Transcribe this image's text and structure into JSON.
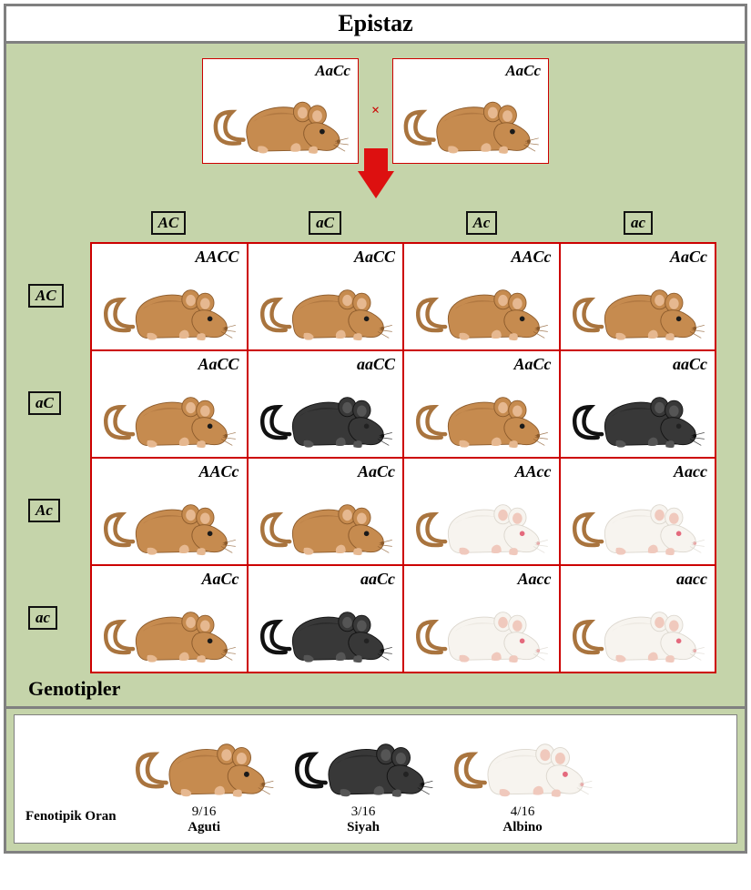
{
  "title": "Epistaz",
  "colors": {
    "agouti_body": "#c68b4f",
    "agouti_dark": "#8b5a2b",
    "black_body": "#383838",
    "black_dark": "#111111",
    "albino_body": "#f7f4ef",
    "albino_shadow": "#dcd7ce",
    "albino_eye": "#e46a7d",
    "ear_inner": "#e6b890",
    "tail": "#a9743e",
    "panel_bg": "#c5d4aa",
    "cell_border": "#cc0000",
    "frame_border": "#808080",
    "arrow": "#dd1010"
  },
  "parents": [
    {
      "genotype": "AaCc",
      "phenotype": "agouti"
    },
    {
      "genotype": "AaCc",
      "phenotype": "agouti"
    }
  ],
  "cross_symbol": "×",
  "column_alleles": [
    "AC",
    "aC",
    "Ac",
    "ac"
  ],
  "row_alleles": [
    "AC",
    "aC",
    "Ac",
    "ac"
  ],
  "punnett": [
    [
      {
        "genotype": "AACC",
        "phenotype": "agouti"
      },
      {
        "genotype": "AaCC",
        "phenotype": "agouti"
      },
      {
        "genotype": "AACc",
        "phenotype": "agouti"
      },
      {
        "genotype": "AaCc",
        "phenotype": "agouti"
      }
    ],
    [
      {
        "genotype": "AaCC",
        "phenotype": "agouti"
      },
      {
        "genotype": "aaCC",
        "phenotype": "black"
      },
      {
        "genotype": "AaCc",
        "phenotype": "agouti"
      },
      {
        "genotype": "aaCc",
        "phenotype": "black"
      }
    ],
    [
      {
        "genotype": "AACc",
        "phenotype": "agouti"
      },
      {
        "genotype": "AaCc",
        "phenotype": "agouti"
      },
      {
        "genotype": "AAcc",
        "phenotype": "albino"
      },
      {
        "genotype": "Aacc",
        "phenotype": "albino"
      }
    ],
    [
      {
        "genotype": "AaCc",
        "phenotype": "agouti"
      },
      {
        "genotype": "aaCc",
        "phenotype": "black"
      },
      {
        "genotype": "Aacc",
        "phenotype": "albino"
      },
      {
        "genotype": "aacc",
        "phenotype": "albino"
      }
    ]
  ],
  "genotypes_label": "Genotipler",
  "legend": {
    "label": "Fenotipik Oran",
    "items": [
      {
        "phenotype": "agouti",
        "ratio": "9/16",
        "name": "Aguti"
      },
      {
        "phenotype": "black",
        "ratio": "3/16",
        "name": "Siyah"
      },
      {
        "phenotype": "albino",
        "ratio": "4/16",
        "name": "Albino"
      }
    ]
  }
}
